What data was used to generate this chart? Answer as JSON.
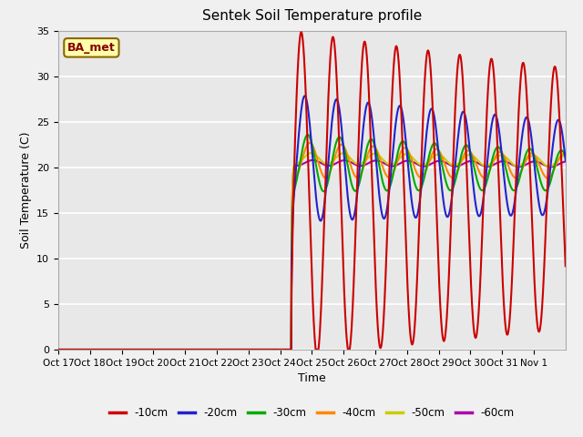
{
  "title": "Sentek Soil Temperature profile",
  "xlabel": "Time",
  "ylabel": "Soil Temperature (C)",
  "ylim": [
    0,
    35
  ],
  "fig_bg": "#f0f0f0",
  "ax_bg": "#e8e8e8",
  "legend_label": "BA_met",
  "x_tick_labels": [
    "Oct 17",
    "Oct 18",
    "Oct 19",
    "Oct 20",
    "Oct 21",
    "Oct 22",
    "Oct 23",
    "Oct 24",
    "Oct 25",
    "Oct 26",
    "Oct 27",
    "Oct 28",
    "Oct 29",
    "Oct 30",
    "Oct 31",
    "Nov 1"
  ],
  "colors": {
    "-10cm": "#cc0000",
    "-20cm": "#2222cc",
    "-30cm": "#00aa00",
    "-40cm": "#ff8800",
    "-50cm": "#cccc00",
    "-60cm": "#aa00aa"
  },
  "legend_box_facecolor": "#ffffaa",
  "legend_box_edgecolor": "#886600",
  "legend_label_color": "#880000"
}
